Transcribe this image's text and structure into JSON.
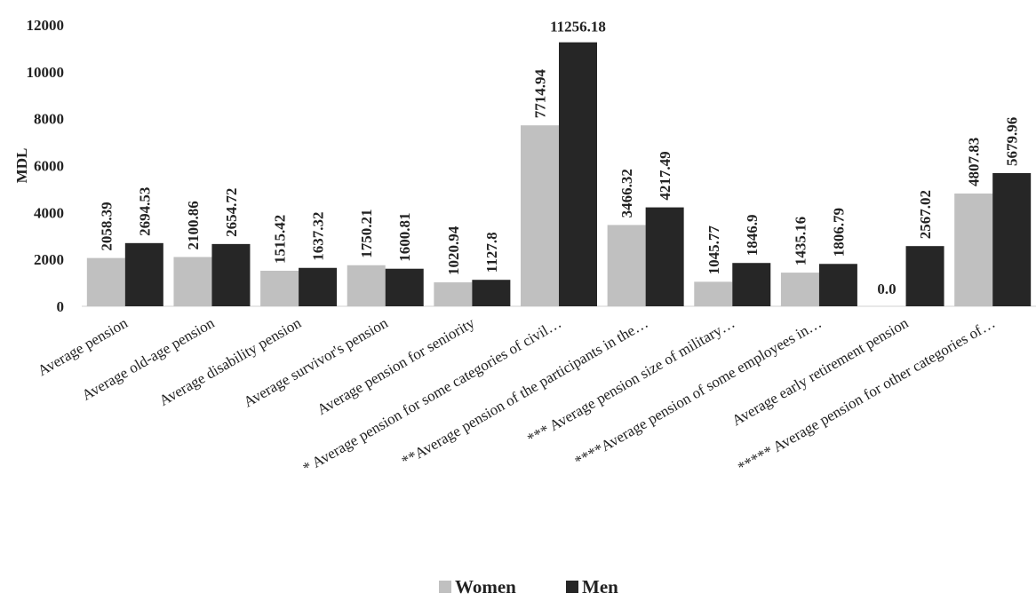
{
  "chart_data": {
    "type": "bar",
    "ylabel": "MDL",
    "ylim": [
      0,
      12000
    ],
    "yticks": [
      0,
      2000,
      4000,
      6000,
      8000,
      10000,
      12000
    ],
    "grid": false,
    "legend_position": "bottom",
    "categories": [
      "Average pension",
      "Average old-age pension",
      "Average disability pension",
      "Average survivor's pension",
      "Average pension for seniority",
      "* Average pension for some categories of civil…",
      "**Average pension of the participants in the…",
      "*** Average pension size of military…",
      "****Average pension of some employees in…",
      "Average early retirement pension",
      "***** Average pension for other categories of…"
    ],
    "series": [
      {
        "name": "Women",
        "color": "#c0c0c0",
        "values": [
          2058.39,
          2100.86,
          1515.42,
          1750.21,
          1020.94,
          7714.94,
          3466.32,
          1045.77,
          1435.16,
          0.0,
          4807.83
        ],
        "labels": [
          "2058.39",
          "2100.86",
          "1515.42",
          "1750.21",
          "1020.94",
          "7714.94",
          "3466.32",
          "1045.77",
          "1435.16",
          "0.0",
          "4807.83"
        ]
      },
      {
        "name": "Men",
        "color": "#262626",
        "values": [
          2694.53,
          2654.72,
          1637.32,
          1600.81,
          1127.8,
          11256.18,
          4217.49,
          1846.9,
          1806.79,
          2567.02,
          5679.96
        ],
        "labels": [
          "2694.53",
          "2654.72",
          "1637.32",
          "1600.81",
          "1127.8",
          "11256.18",
          "4217.49",
          "1846.9",
          "1806.79",
          "2567.02",
          "5679.96"
        ]
      }
    ]
  }
}
